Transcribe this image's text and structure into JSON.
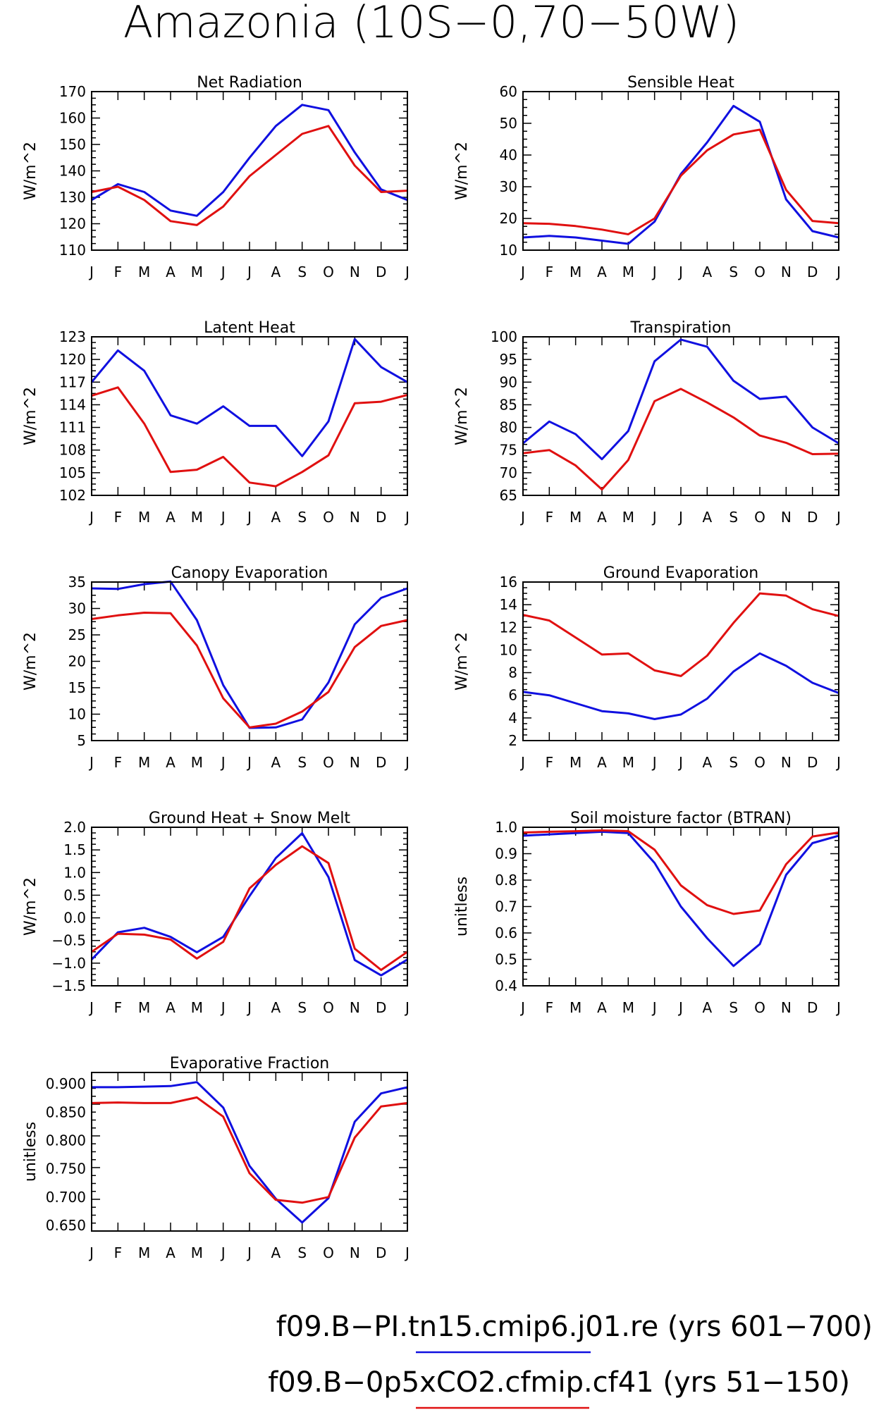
{
  "title": "Amazonia (10S−0,70−50W)",
  "months": [
    "J",
    "F",
    "M",
    "A",
    "M",
    "J",
    "J",
    "A",
    "S",
    "O",
    "N",
    "D",
    "J"
  ],
  "colors": {
    "series1": "#1010e0",
    "series2": "#e01010"
  },
  "legend": [
    {
      "label": "f09.B−PI.tn15.cmip6.j01.re (yrs 601−700)",
      "color": "#1010e0"
    },
    {
      "label": "f09.B−0p5xCO2.cfmip.cf41 (yrs 51−150)",
      "color": "#e01010"
    }
  ],
  "chart_data": [
    {
      "type": "line",
      "title": "Net Radiation",
      "ylabel": "W/m^2",
      "ylim": [
        110,
        170
      ],
      "yticks": [
        "110",
        "120",
        "130",
        "140",
        "150",
        "160",
        "170"
      ],
      "series": [
        {
          "color": "#1010e0",
          "values": [
            129,
            135,
            132,
            125,
            123,
            132,
            145,
            157,
            165,
            163,
            147,
            133,
            129
          ]
        },
        {
          "color": "#e01010",
          "values": [
            132,
            134,
            129,
            121,
            119.5,
            126.5,
            138,
            146,
            154,
            157,
            142,
            132,
            132.5
          ]
        }
      ]
    },
    {
      "type": "line",
      "title": "Sensible Heat",
      "ylabel": "W/m^2",
      "ylim": [
        10,
        60
      ],
      "yticks": [
        "10",
        "20",
        "30",
        "40",
        "50",
        "60"
      ],
      "series": [
        {
          "color": "#1010e0",
          "values": [
            14,
            14.5,
            14,
            13,
            12,
            19,
            34,
            44,
            55.5,
            50.5,
            26,
            16,
            14
          ]
        },
        {
          "color": "#e01010",
          "values": [
            18.5,
            18.3,
            17.6,
            16.5,
            15,
            20,
            33.5,
            41.5,
            46.5,
            48,
            29,
            19.2,
            18.5
          ]
        }
      ]
    },
    {
      "type": "line",
      "title": "Latent Heat",
      "ylabel": "W/m^2",
      "ylim": [
        102,
        123
      ],
      "yticks": [
        "102",
        "105",
        "108",
        "111",
        "114",
        "117",
        "120",
        "123"
      ],
      "series": [
        {
          "color": "#1010e0",
          "values": [
            117,
            121.2,
            118.5,
            112.6,
            111.5,
            113.8,
            111.2,
            111.2,
            107.2,
            111.8,
            122.7,
            119,
            117
          ]
        },
        {
          "color": "#e01010",
          "values": [
            115.2,
            116.3,
            111.5,
            105.1,
            105.4,
            107.1,
            103.7,
            103.2,
            105.1,
            107.3,
            114.2,
            114.4,
            115.3
          ]
        }
      ]
    },
    {
      "type": "line",
      "title": "Transpiration",
      "ylabel": "W/m^2",
      "ylim": [
        65,
        100
      ],
      "yticks": [
        "65",
        "70",
        "75",
        "80",
        "85",
        "90",
        "95",
        "100"
      ],
      "series": [
        {
          "color": "#1010e0",
          "values": [
            76.5,
            81.3,
            78.5,
            73,
            79.2,
            94.6,
            99.4,
            97.8,
            90.3,
            86.3,
            86.8,
            80,
            76.5
          ]
        },
        {
          "color": "#e01010",
          "values": [
            74.3,
            75,
            71.6,
            66.3,
            72.8,
            85.8,
            88.5,
            85.5,
            82.2,
            78.2,
            76.6,
            74.1,
            74.2
          ]
        }
      ]
    },
    {
      "type": "line",
      "title": "Canopy Evaporation",
      "ylabel": "W/m^2",
      "ylim": [
        5,
        35
      ],
      "yticks": [
        "5",
        "10",
        "15",
        "20",
        "25",
        "30",
        "35"
      ],
      "series": [
        {
          "color": "#1010e0",
          "values": [
            33.8,
            33.7,
            34.6,
            35.1,
            27.8,
            15.5,
            7.4,
            7.5,
            9,
            16,
            27,
            32,
            33.8
          ]
        },
        {
          "color": "#e01010",
          "values": [
            28,
            28.7,
            29.2,
            29.1,
            23,
            13,
            7.5,
            8.2,
            10.5,
            14.2,
            22.7,
            26.7,
            27.8
          ]
        }
      ]
    },
    {
      "type": "line",
      "title": "Ground Evaporation",
      "ylabel": "W/m^2",
      "ylim": [
        2,
        16
      ],
      "yticks": [
        "2",
        "4",
        "6",
        "8",
        "10",
        "12",
        "14",
        "16"
      ],
      "series": [
        {
          "color": "#1010e0",
          "values": [
            6.3,
            6,
            5.3,
            4.6,
            4.4,
            3.9,
            4.3,
            5.7,
            8.1,
            9.7,
            8.6,
            7.1,
            6.2
          ]
        },
        {
          "color": "#e01010",
          "values": [
            13.1,
            12.6,
            11.1,
            9.6,
            9.7,
            8.2,
            7.7,
            9.5,
            12.4,
            15,
            14.8,
            13.6,
            13
          ]
        }
      ]
    },
    {
      "type": "line",
      "title": "Ground Heat + Snow Melt",
      "ylabel": "W/m^2",
      "ylim": [
        -1.5,
        2.0
      ],
      "yticks": [
        "−1.5",
        "−1.0",
        "−0.5",
        "0.0",
        "0.5",
        "1.0",
        "1.5",
        "2.0"
      ],
      "series": [
        {
          "color": "#1010e0",
          "values": [
            -0.92,
            -0.32,
            -0.22,
            -0.42,
            -0.76,
            -0.42,
            0.48,
            1.32,
            1.87,
            0.9,
            -0.93,
            -1.27,
            -0.92
          ]
        },
        {
          "color": "#e01010",
          "values": [
            -0.75,
            -0.35,
            -0.37,
            -0.48,
            -0.9,
            -0.53,
            0.65,
            1.17,
            1.58,
            1.21,
            -0.68,
            -1.15,
            -0.75
          ]
        }
      ]
    },
    {
      "type": "line",
      "title": "Soil moisture factor (BTRAN)",
      "ylabel": "unitless",
      "ylim": [
        0.4,
        1.0
      ],
      "yticks": [
        "0.4",
        "0.5",
        "0.6",
        "0.7",
        "0.8",
        "0.9",
        "1.0"
      ],
      "series": [
        {
          "color": "#1010e0",
          "values": [
            0.968,
            0.973,
            0.978,
            0.983,
            0.978,
            0.865,
            0.7,
            0.58,
            0.475,
            0.558,
            0.82,
            0.94,
            0.968
          ]
        },
        {
          "color": "#e01010",
          "values": [
            0.98,
            0.983,
            0.985,
            0.988,
            0.985,
            0.915,
            0.78,
            0.705,
            0.672,
            0.685,
            0.86,
            0.965,
            0.98
          ]
        }
      ]
    },
    {
      "type": "line",
      "title": "Evaporative Fraction",
      "ylabel": "unitless",
      "ylim": [
        0.64,
        0.92
      ],
      "yticks": [
        "0.650",
        "0.700",
        "0.750",
        "0.800",
        "0.850",
        "0.900"
      ],
      "series": [
        {
          "color": "#1010e0",
          "values": [
            0.894,
            0.894,
            0.895,
            0.896,
            0.903,
            0.858,
            0.755,
            0.697,
            0.655,
            0.698,
            0.833,
            0.883,
            0.894
          ]
        },
        {
          "color": "#e01010",
          "values": [
            0.866,
            0.867,
            0.866,
            0.866,
            0.876,
            0.842,
            0.742,
            0.695,
            0.69,
            0.7,
            0.805,
            0.86,
            0.866
          ]
        }
      ]
    }
  ]
}
